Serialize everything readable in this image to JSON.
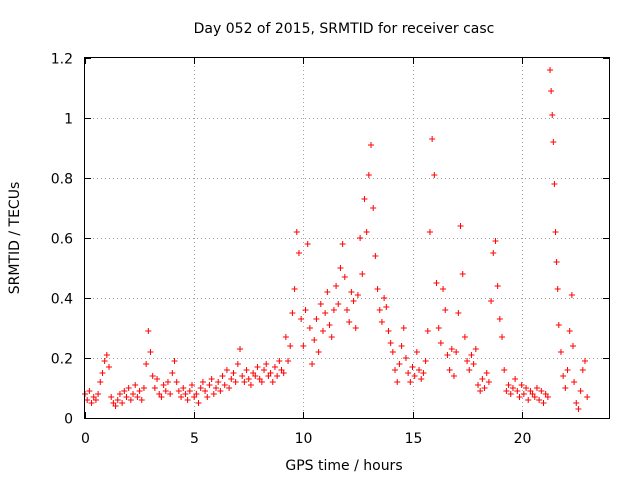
{
  "chart_data": {
    "type": "scatter",
    "title": "Day 052 of 2015, SRMTID for receiver casc",
    "xlabel": "GPS time / hours",
    "ylabel": "SRMTID / TECUs",
    "xlim": [
      0,
      24
    ],
    "ylim": [
      0,
      1.2
    ],
    "xticks": [
      0,
      5,
      10,
      15,
      20
    ],
    "xtick_labels": [
      "0",
      "5",
      "10",
      "15",
      "20"
    ],
    "yticks": [
      0,
      0.2,
      0.4,
      0.6,
      0.8,
      1.0,
      1.2
    ],
    "ytick_labels": [
      "0",
      "0.2",
      "0.4",
      "0.6",
      "0.8",
      "1",
      "1.2"
    ],
    "grid": true,
    "marker": "+",
    "color": "#ff0000",
    "series": [
      {
        "name": "SRMTID",
        "points": [
          [
            0.0,
            0.08
          ],
          [
            0.1,
            0.06
          ],
          [
            0.2,
            0.09
          ],
          [
            0.3,
            0.05
          ],
          [
            0.4,
            0.07
          ],
          [
            0.5,
            0.06
          ],
          [
            0.6,
            0.08
          ],
          [
            0.7,
            0.12
          ],
          [
            0.8,
            0.15
          ],
          [
            0.9,
            0.19
          ],
          [
            1.0,
            0.21
          ],
          [
            1.1,
            0.17
          ],
          [
            1.2,
            0.07
          ],
          [
            1.3,
            0.05
          ],
          [
            1.4,
            0.04
          ],
          [
            1.5,
            0.06
          ],
          [
            1.6,
            0.08
          ],
          [
            1.7,
            0.05
          ],
          [
            1.8,
            0.09
          ],
          [
            1.9,
            0.07
          ],
          [
            2.0,
            0.1
          ],
          [
            2.1,
            0.06
          ],
          [
            2.2,
            0.08
          ],
          [
            2.3,
            0.11
          ],
          [
            2.4,
            0.07
          ],
          [
            2.5,
            0.09
          ],
          [
            2.6,
            0.06
          ],
          [
            2.7,
            0.1
          ],
          [
            2.8,
            0.18
          ],
          [
            2.9,
            0.29
          ],
          [
            3.0,
            0.22
          ],
          [
            3.1,
            0.14
          ],
          [
            3.2,
            0.1
          ],
          [
            3.3,
            0.13
          ],
          [
            3.4,
            0.08
          ],
          [
            3.5,
            0.07
          ],
          [
            3.6,
            0.11
          ],
          [
            3.7,
            0.09
          ],
          [
            3.8,
            0.12
          ],
          [
            3.9,
            0.08
          ],
          [
            4.0,
            0.15
          ],
          [
            4.1,
            0.19
          ],
          [
            4.2,
            0.12
          ],
          [
            4.3,
            0.09
          ],
          [
            4.4,
            0.07
          ],
          [
            4.5,
            0.1
          ],
          [
            4.6,
            0.08
          ],
          [
            4.7,
            0.06
          ],
          [
            4.8,
            0.09
          ],
          [
            4.9,
            0.11
          ],
          [
            5.0,
            0.07
          ],
          [
            5.1,
            0.08
          ],
          [
            5.2,
            0.05
          ],
          [
            5.3,
            0.1
          ],
          [
            5.4,
            0.12
          ],
          [
            5.5,
            0.09
          ],
          [
            5.6,
            0.07
          ],
          [
            5.7,
            0.11
          ],
          [
            5.8,
            0.13
          ],
          [
            5.9,
            0.08
          ],
          [
            6.0,
            0.1
          ],
          [
            6.1,
            0.12
          ],
          [
            6.2,
            0.09
          ],
          [
            6.3,
            0.14
          ],
          [
            6.4,
            0.11
          ],
          [
            6.5,
            0.16
          ],
          [
            6.6,
            0.1
          ],
          [
            6.7,
            0.13
          ],
          [
            6.8,
            0.15
          ],
          [
            6.9,
            0.12
          ],
          [
            7.0,
            0.18
          ],
          [
            7.1,
            0.23
          ],
          [
            7.2,
            0.14
          ],
          [
            7.3,
            0.12
          ],
          [
            7.4,
            0.16
          ],
          [
            7.5,
            0.13
          ],
          [
            7.6,
            0.11
          ],
          [
            7.7,
            0.15
          ],
          [
            7.8,
            0.14
          ],
          [
            7.9,
            0.17
          ],
          [
            8.0,
            0.13
          ],
          [
            8.1,
            0.12
          ],
          [
            8.2,
            0.16
          ],
          [
            8.3,
            0.18
          ],
          [
            8.4,
            0.14
          ],
          [
            8.5,
            0.15
          ],
          [
            8.6,
            0.12
          ],
          [
            8.7,
            0.17
          ],
          [
            8.8,
            0.14
          ],
          [
            8.9,
            0.19
          ],
          [
            9.0,
            0.16
          ],
          [
            9.1,
            0.15
          ],
          [
            9.2,
            0.27
          ],
          [
            9.3,
            0.19
          ],
          [
            9.4,
            0.24
          ],
          [
            9.5,
            0.35
          ],
          [
            9.6,
            0.43
          ],
          [
            9.7,
            0.62
          ],
          [
            9.8,
            0.55
          ],
          [
            9.9,
            0.33
          ],
          [
            10.0,
            0.24
          ],
          [
            10.1,
            0.36
          ],
          [
            10.2,
            0.58
          ],
          [
            10.3,
            0.3
          ],
          [
            10.4,
            0.18
          ],
          [
            10.5,
            0.26
          ],
          [
            10.6,
            0.33
          ],
          [
            10.7,
            0.22
          ],
          [
            10.8,
            0.38
          ],
          [
            10.9,
            0.29
          ],
          [
            11.0,
            0.35
          ],
          [
            11.1,
            0.42
          ],
          [
            11.2,
            0.31
          ],
          [
            11.3,
            0.27
          ],
          [
            11.4,
            0.36
          ],
          [
            11.5,
            0.44
          ],
          [
            11.6,
            0.38
          ],
          [
            11.7,
            0.5
          ],
          [
            11.8,
            0.58
          ],
          [
            11.9,
            0.47
          ],
          [
            12.0,
            0.36
          ],
          [
            12.1,
            0.32
          ],
          [
            12.2,
            0.42
          ],
          [
            12.3,
            0.39
          ],
          [
            12.4,
            0.3
          ],
          [
            12.5,
            0.41
          ],
          [
            12.6,
            0.6
          ],
          [
            12.7,
            0.48
          ],
          [
            12.8,
            0.73
          ],
          [
            12.9,
            0.62
          ],
          [
            13.0,
            0.81
          ],
          [
            13.1,
            0.91
          ],
          [
            13.2,
            0.7
          ],
          [
            13.3,
            0.54
          ],
          [
            13.4,
            0.43
          ],
          [
            13.5,
            0.36
          ],
          [
            13.6,
            0.32
          ],
          [
            13.7,
            0.4
          ],
          [
            13.8,
            0.37
          ],
          [
            13.9,
            0.29
          ],
          [
            14.0,
            0.25
          ],
          [
            14.1,
            0.22
          ],
          [
            14.2,
            0.16
          ],
          [
            14.3,
            0.12
          ],
          [
            14.4,
            0.18
          ],
          [
            14.5,
            0.24
          ],
          [
            14.6,
            0.3
          ],
          [
            14.7,
            0.2
          ],
          [
            14.8,
            0.15
          ],
          [
            14.9,
            0.12
          ],
          [
            15.0,
            0.17
          ],
          [
            15.1,
            0.14
          ],
          [
            15.2,
            0.22
          ],
          [
            15.3,
            0.16
          ],
          [
            15.4,
            0.13
          ],
          [
            15.5,
            0.15
          ],
          [
            15.6,
            0.19
          ],
          [
            15.7,
            0.29
          ],
          [
            15.8,
            0.62
          ],
          [
            15.9,
            0.93
          ],
          [
            16.0,
            0.81
          ],
          [
            16.1,
            0.45
          ],
          [
            16.2,
            0.3
          ],
          [
            16.3,
            0.25
          ],
          [
            16.4,
            0.43
          ],
          [
            16.5,
            0.36
          ],
          [
            16.6,
            0.21
          ],
          [
            16.7,
            0.16
          ],
          [
            16.8,
            0.23
          ],
          [
            16.9,
            0.14
          ],
          [
            17.0,
            0.22
          ],
          [
            17.1,
            0.35
          ],
          [
            17.2,
            0.64
          ],
          [
            17.3,
            0.48
          ],
          [
            17.4,
            0.27
          ],
          [
            17.5,
            0.19
          ],
          [
            17.6,
            0.16
          ],
          [
            17.7,
            0.21
          ],
          [
            17.8,
            0.18
          ],
          [
            17.9,
            0.23
          ],
          [
            18.0,
            0.11
          ],
          [
            18.1,
            0.09
          ],
          [
            18.2,
            0.13
          ],
          [
            18.3,
            0.1
          ],
          [
            18.4,
            0.15
          ],
          [
            18.5,
            0.12
          ],
          [
            18.6,
            0.39
          ],
          [
            18.7,
            0.55
          ],
          [
            18.8,
            0.59
          ],
          [
            18.9,
            0.44
          ],
          [
            19.0,
            0.33
          ],
          [
            19.1,
            0.27
          ],
          [
            19.2,
            0.16
          ],
          [
            19.3,
            0.09
          ],
          [
            19.4,
            0.11
          ],
          [
            19.5,
            0.08
          ],
          [
            19.6,
            0.1
          ],
          [
            19.7,
            0.13
          ],
          [
            19.8,
            0.09
          ],
          [
            19.9,
            0.07
          ],
          [
            20.0,
            0.11
          ],
          [
            20.1,
            0.08
          ],
          [
            20.2,
            0.1
          ],
          [
            20.3,
            0.06
          ],
          [
            20.4,
            0.09
          ],
          [
            20.5,
            0.08
          ],
          [
            20.6,
            0.07
          ],
          [
            20.7,
            0.1
          ],
          [
            20.8,
            0.06
          ],
          [
            20.9,
            0.09
          ],
          [
            21.0,
            0.05
          ],
          [
            21.1,
            0.08
          ],
          [
            21.2,
            0.07
          ],
          [
            21.3,
            1.16
          ],
          [
            21.35,
            1.09
          ],
          [
            21.4,
            1.01
          ],
          [
            21.45,
            0.92
          ],
          [
            21.5,
            0.78
          ],
          [
            21.55,
            0.62
          ],
          [
            21.6,
            0.52
          ],
          [
            21.65,
            0.43
          ],
          [
            21.7,
            0.31
          ],
          [
            21.8,
            0.22
          ],
          [
            21.9,
            0.14
          ],
          [
            22.0,
            0.1
          ],
          [
            22.1,
            0.16
          ],
          [
            22.2,
            0.29
          ],
          [
            22.3,
            0.41
          ],
          [
            22.35,
            0.24
          ],
          [
            22.4,
            0.12
          ],
          [
            22.5,
            0.05
          ],
          [
            22.6,
            0.03
          ],
          [
            22.7,
            0.09
          ],
          [
            22.8,
            0.16
          ],
          [
            22.9,
            0.19
          ],
          [
            23.0,
            0.07
          ]
        ]
      }
    ]
  }
}
